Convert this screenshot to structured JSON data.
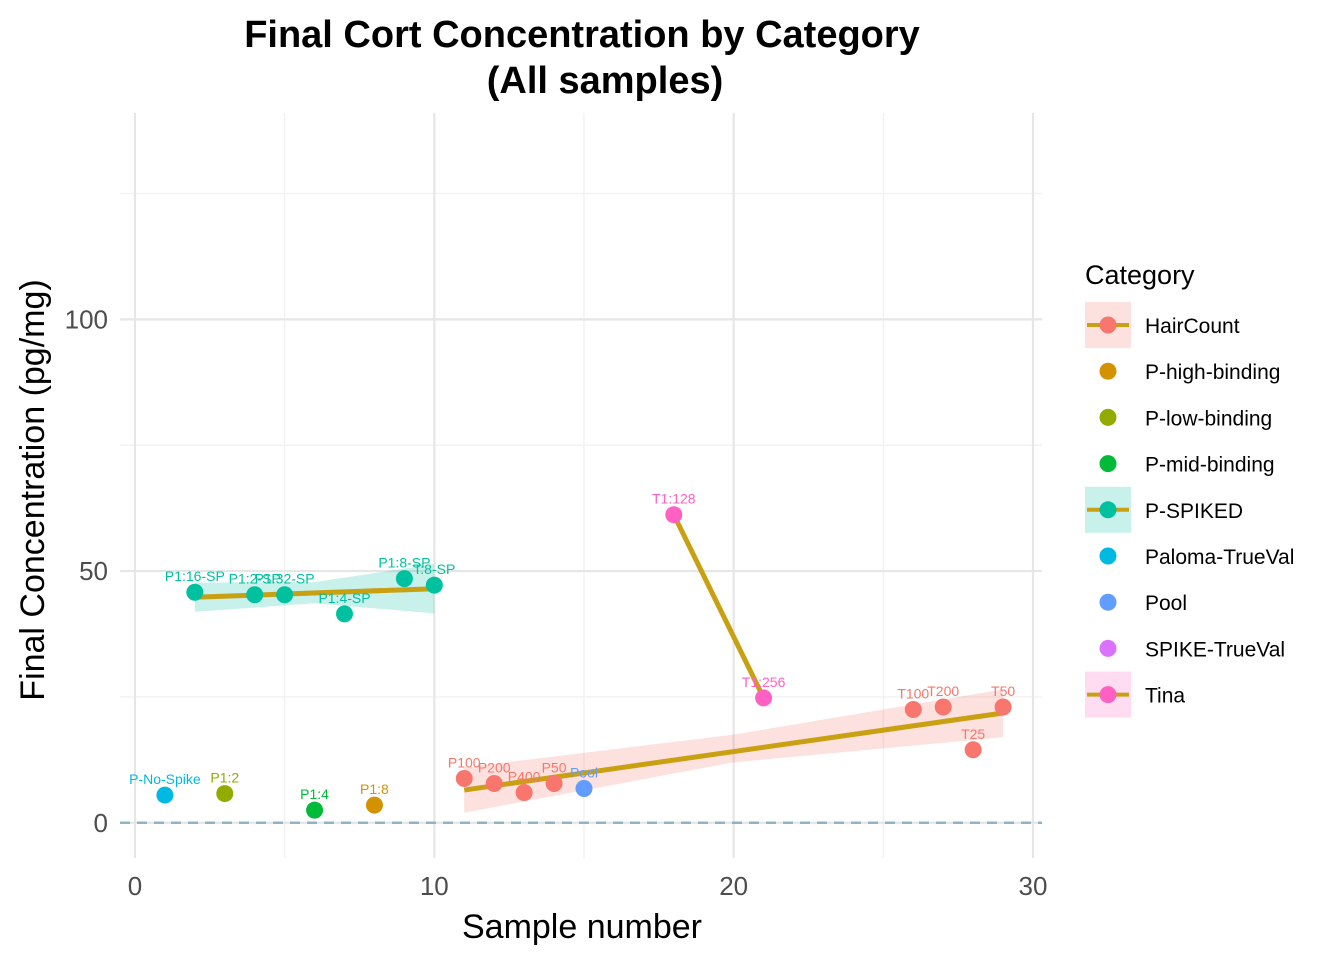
{
  "chart_data": {
    "type": "scatter",
    "title_line1": "Final Cort Concentration by Category",
    "title_line2": "(All samples)",
    "xlabel": "Sample number",
    "ylabel": "Final Concentration (pg/mg)",
    "xlim": [
      -0.5,
      30.3
    ],
    "ylim": [
      -7,
      141
    ],
    "x_ticks": [
      0,
      10,
      20,
      30
    ],
    "y_ticks": [
      0,
      50,
      100
    ],
    "x_minor": [
      5,
      15,
      25
    ],
    "y_minor": [
      25,
      75,
      125
    ],
    "grid": true,
    "reference_line": {
      "y": 0,
      "style": "dashed",
      "color": "#8fb4c6"
    },
    "legend": {
      "title": "Category",
      "placement": "right",
      "entries": [
        {
          "label": "HairCount",
          "color": "#F8766D",
          "fit": true
        },
        {
          "label": "P-high-binding",
          "color": "#D39200",
          "fit": false
        },
        {
          "label": "P-low-binding",
          "color": "#93AA00",
          "fit": false
        },
        {
          "label": "P-mid-binding",
          "color": "#00BA38",
          "fit": false
        },
        {
          "label": "P-SPIKED",
          "color": "#00C19F",
          "fit": true
        },
        {
          "label": "Paloma-TrueVal",
          "color": "#00B9E3",
          "fit": false
        },
        {
          "label": "Pool",
          "color": "#619CFF",
          "fit": false
        },
        {
          "label": "SPIKE-TrueVal",
          "color": "#DB72FB",
          "fit": false
        },
        {
          "label": "Tina",
          "color": "#FF61C3",
          "fit": true
        }
      ]
    },
    "fit_line_color": "#C9A012",
    "points": [
      {
        "x": 1,
        "y": 5.5,
        "category": "Paloma-TrueVal",
        "label": "P-No-Spike"
      },
      {
        "x": 2,
        "y": 45.8,
        "category": "P-SPIKED",
        "label": "P1:16-SP"
      },
      {
        "x": 3,
        "y": 5.8,
        "category": "P-low-binding",
        "label": "P1:2"
      },
      {
        "x": 4,
        "y": 45.3,
        "category": "P-SPIKED",
        "label": "P1:2-SP"
      },
      {
        "x": 5,
        "y": 45.3,
        "category": "P-SPIKED",
        "label": "P1:32-SP"
      },
      {
        "x": 6,
        "y": 2.5,
        "category": "P-mid-binding",
        "label": "P1:4"
      },
      {
        "x": 7,
        "y": 41.5,
        "category": "P-SPIKED",
        "label": "P1:4-SP"
      },
      {
        "x": 8,
        "y": 3.5,
        "category": "P-high-binding",
        "label": "P1:8"
      },
      {
        "x": 9,
        "y": 48.5,
        "category": "P-SPIKED",
        "label": "P1:8-SP"
      },
      {
        "x": 10,
        "y": 47.2,
        "category": "P-SPIKED",
        "label": "T:8-SP"
      },
      {
        "x": 11,
        "y": 8.8,
        "category": "HairCount",
        "label": "P100"
      },
      {
        "x": 12,
        "y": 7.8,
        "category": "HairCount",
        "label": "P200"
      },
      {
        "x": 13,
        "y": 6.0,
        "category": "HairCount",
        "label": "P400"
      },
      {
        "x": 14,
        "y": 7.8,
        "category": "HairCount",
        "label": "P50"
      },
      {
        "x": 15,
        "y": 6.8,
        "category": "Pool",
        "label": "Pool"
      },
      {
        "x": 18,
        "y": 61.2,
        "category": "Tina",
        "label": "T1:128"
      },
      {
        "x": 21,
        "y": 24.8,
        "category": "Tina",
        "label": "T1:256"
      },
      {
        "x": 26,
        "y": 22.5,
        "category": "HairCount",
        "label": "T100"
      },
      {
        "x": 27,
        "y": 23.0,
        "category": "HairCount",
        "label": "T200"
      },
      {
        "x": 28,
        "y": 14.5,
        "category": "HairCount",
        "label": "T25"
      },
      {
        "x": 29,
        "y": 23.0,
        "category": "HairCount",
        "label": "T50"
      }
    ],
    "fits": [
      {
        "category": "P-SPIKED",
        "x": [
          2,
          10
        ],
        "y": [
          44.8,
          46.5
        ],
        "band": [
          [
            2,
            41.9,
            47.7
          ],
          [
            6,
            43.6,
            47.8
          ],
          [
            10,
            41.6,
            51.4
          ]
        ]
      },
      {
        "category": "HairCount",
        "x": [
          11,
          29
        ],
        "y": [
          6.5,
          21.8
        ],
        "band": [
          [
            11,
            2.0,
            11.0
          ],
          [
            20,
            12.0,
            17.5
          ],
          [
            29,
            17.0,
            26.5
          ]
        ]
      },
      {
        "category": "Tina",
        "x": [
          18,
          21
        ],
        "y": [
          61.2,
          24.8
        ],
        "band": []
      }
    ]
  }
}
